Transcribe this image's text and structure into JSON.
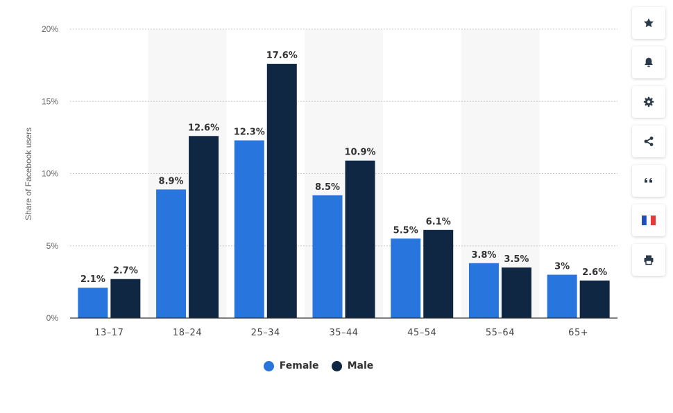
{
  "chart_data": {
    "type": "bar",
    "categories": [
      "13-17",
      "18-24",
      "25-34",
      "35-44",
      "45-54",
      "55-64",
      "65+"
    ],
    "series": [
      {
        "name": "Female",
        "color": "#2876dd",
        "values": [
          2.1,
          8.9,
          12.3,
          8.5,
          5.5,
          3.8,
          3.0
        ],
        "labels": [
          "2.1%",
          "8.9%",
          "12.3%",
          "8.5%",
          "5.5%",
          "3.8%",
          "3%"
        ]
      },
      {
        "name": "Male",
        "color": "#0f2742",
        "values": [
          2.7,
          12.6,
          17.6,
          10.9,
          6.1,
          3.5,
          2.6
        ],
        "labels": [
          "2.7%",
          "12.6%",
          "17.6%",
          "10.9%",
          "6.1%",
          "3.5%",
          "2.6%"
        ]
      }
    ],
    "ylabel": "Share of Facebook users",
    "ylim": [
      0,
      20
    ],
    "yticks": [
      0,
      5,
      10,
      15,
      20
    ],
    "ytick_labels": [
      "0%",
      "5%",
      "10%",
      "15%",
      "20%"
    ],
    "grid": true,
    "legend_position": "bottom-center",
    "alternate_band_color": "#f7f7f7"
  },
  "sidebar": {
    "buttons": [
      {
        "name": "favorite-button",
        "icon": "star-icon"
      },
      {
        "name": "notification-button",
        "icon": "bell-icon"
      },
      {
        "name": "settings-button",
        "icon": "gear-icon"
      },
      {
        "name": "share-button",
        "icon": "share-icon"
      },
      {
        "name": "cite-button",
        "icon": "quote-icon"
      },
      {
        "name": "language-button",
        "icon": "french-flag-icon"
      },
      {
        "name": "print-button",
        "icon": "printer-icon"
      }
    ],
    "icon_color": "#2b3a4a"
  }
}
